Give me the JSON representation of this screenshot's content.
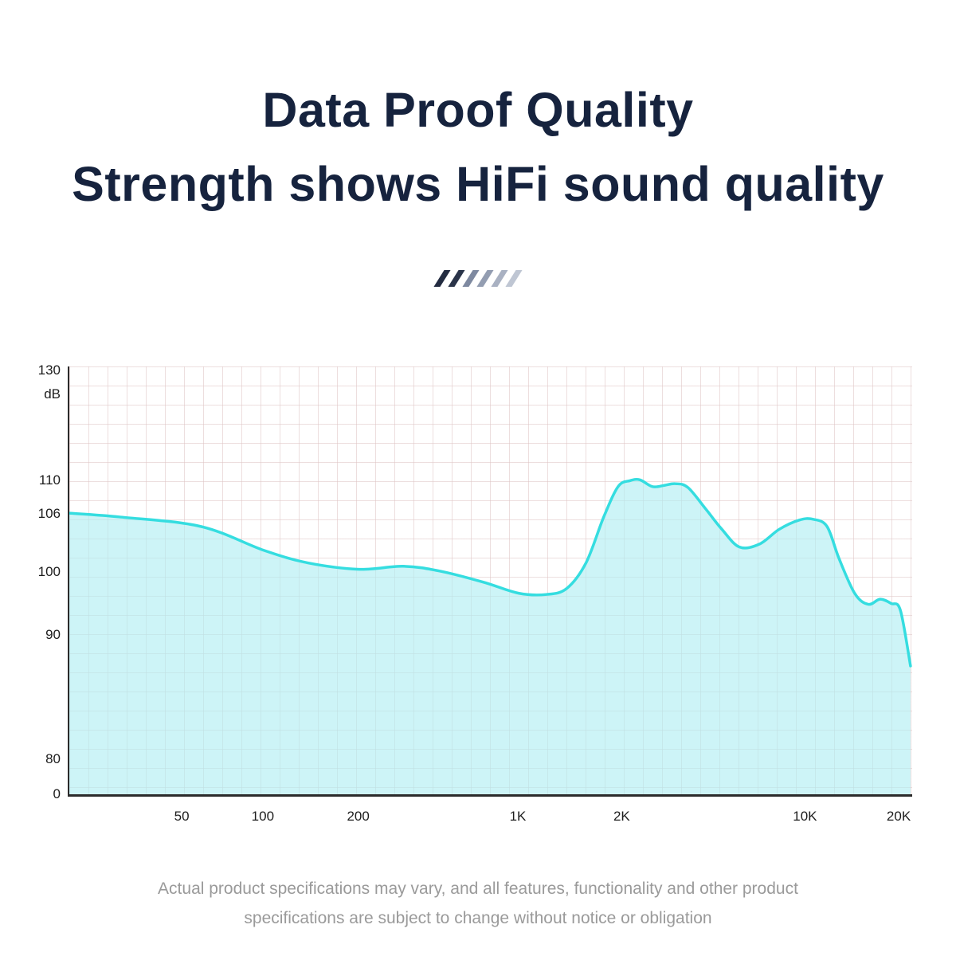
{
  "page": {
    "background": "#ffffff"
  },
  "header": {
    "line1": "Data Proof Quality",
    "line2": "Strength shows HiFi sound quality",
    "color": "#16233e"
  },
  "decorative": {
    "slash_colors": [
      "#232c41",
      "#2a3449",
      "#7e89a0",
      "#939db1",
      "#a9b1c2",
      "#bfc6d3"
    ]
  },
  "chart_data": {
    "type": "area",
    "title": "",
    "xlabel": "",
    "ylabel": "dB",
    "legend": "none",
    "grid": true,
    "line_color": "#35dde0",
    "fill_color": "#aeeef2",
    "grid_color": "#dec4c4",
    "axis_color": "#2b2b2b",
    "y_ticks": [
      {
        "label": "130",
        "pos": 0.009
      },
      {
        "label": "dB",
        "pos": 0.065
      },
      {
        "label": "110",
        "pos": 0.265
      },
      {
        "label": "106",
        "pos": 0.343
      },
      {
        "label": "100",
        "pos": 0.478
      },
      {
        "label": "90",
        "pos": 0.624
      },
      {
        "label": "80",
        "pos": 0.913
      },
      {
        "label": "0",
        "pos": 0.994
      }
    ],
    "x_ticks": [
      {
        "label": "50",
        "pos": 0.135
      },
      {
        "label": "100",
        "pos": 0.231
      },
      {
        "label": "200",
        "pos": 0.344
      },
      {
        "label": "1K",
        "pos": 0.533
      },
      {
        "label": "2K",
        "pos": 0.656
      },
      {
        "label": "10K",
        "pos": 0.873
      },
      {
        "label": "20K",
        "pos": 0.984
      }
    ],
    "points_freq_db": [
      [
        20,
        106
      ],
      [
        50,
        104.5
      ],
      [
        100,
        102
      ],
      [
        150,
        101
      ],
      [
        200,
        100
      ],
      [
        300,
        100.5
      ],
      [
        600,
        98.8
      ],
      [
        1000,
        96.8
      ],
      [
        1300,
        98
      ],
      [
        1700,
        105
      ],
      [
        2000,
        109.8
      ],
      [
        2200,
        109
      ],
      [
        2600,
        109.2
      ],
      [
        3000,
        108.5
      ],
      [
        4000,
        105
      ],
      [
        5000,
        103.2
      ],
      [
        7000,
        104.5
      ],
      [
        9000,
        105.6
      ],
      [
        10000,
        105.8
      ],
      [
        12000,
        103
      ],
      [
        15000,
        96.2
      ],
      [
        18000,
        96.6
      ],
      [
        19000,
        95.8
      ],
      [
        20000,
        87.5
      ]
    ],
    "curve_points": [
      [
        0.0,
        0.343
      ],
      [
        0.061,
        0.352
      ],
      [
        0.156,
        0.374
      ],
      [
        0.231,
        0.43
      ],
      [
        0.283,
        0.459
      ],
      [
        0.344,
        0.474
      ],
      [
        0.396,
        0.467
      ],
      [
        0.439,
        0.478
      ],
      [
        0.491,
        0.504
      ],
      [
        0.533,
        0.53
      ],
      [
        0.566,
        0.533
      ],
      [
        0.59,
        0.519
      ],
      [
        0.613,
        0.459
      ],
      [
        0.634,
        0.352
      ],
      [
        0.651,
        0.281
      ],
      [
        0.665,
        0.267
      ],
      [
        0.677,
        0.265
      ],
      [
        0.692,
        0.281
      ],
      [
        0.706,
        0.278
      ],
      [
        0.719,
        0.274
      ],
      [
        0.734,
        0.283
      ],
      [
        0.755,
        0.333
      ],
      [
        0.774,
        0.38
      ],
      [
        0.795,
        0.422
      ],
      [
        0.819,
        0.415
      ],
      [
        0.842,
        0.381
      ],
      [
        0.866,
        0.359
      ],
      [
        0.882,
        0.357
      ],
      [
        0.899,
        0.374
      ],
      [
        0.913,
        0.448
      ],
      [
        0.932,
        0.531
      ],
      [
        0.948,
        0.556
      ],
      [
        0.962,
        0.544
      ],
      [
        0.975,
        0.554
      ],
      [
        0.986,
        0.57
      ],
      [
        0.998,
        0.7
      ]
    ]
  },
  "footer": {
    "line1": "Actual product specifications may vary, and all features, functionality and other product",
    "line2": "specifications are subject to change without notice or obligation",
    "color": "#9a9a9a"
  }
}
